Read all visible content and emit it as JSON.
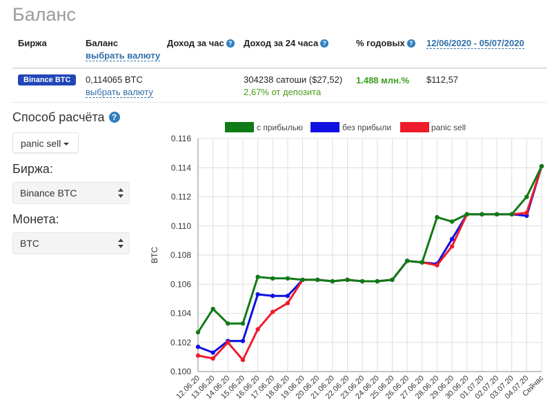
{
  "page_title": "Баланс",
  "table": {
    "headers": {
      "exchange": "Биржа",
      "balance": "Баланс",
      "balance_sub": "выбрать валюту",
      "hourly": "Доход за час",
      "daily": "Доход за 24 часа",
      "annual": "% годовых",
      "date_range": "12/06/2020 - 05/07/2020"
    },
    "row": {
      "exchange_badge": "Binance BTC",
      "balance_value": "0,114065 BTC",
      "balance_link": "выбрать валюту",
      "daily_value": "304238 сатоши ($27,52)",
      "daily_percent": "2,67% от депозита",
      "annual_value": "1.488 млн.%",
      "usd_value": "$112,57"
    }
  },
  "controls": {
    "method_label": "Способ расчёта",
    "method_value": "panic sell",
    "exchange_label": "Биржа:",
    "exchange_value": "Binance BTC",
    "coin_label": "Монета:",
    "coin_value": "BTC"
  },
  "colors": {
    "profit": "#0f7a16",
    "no_profit": "#1010e0",
    "panic": "#ee1c2a",
    "accent": "#2f6fa8"
  },
  "chart_data": {
    "type": "line",
    "ylabel": "BTC",
    "xlabel": "",
    "ylim": [
      0.1,
      0.116
    ],
    "yticks": [
      "0.100",
      "0.102",
      "0.104",
      "0.106",
      "0.108",
      "0.110",
      "0.112",
      "0.114",
      "0.116"
    ],
    "legend_position": "top",
    "grid": true,
    "categories": [
      "12.06.20",
      "13.06.20",
      "14.06.20",
      "15.06.20",
      "16.06.20",
      "17.06.20",
      "18.06.20",
      "19.06.20",
      "20.06.20",
      "21.06.20",
      "22.06.20",
      "23.06.20",
      "24.06.20",
      "25.06.20",
      "26.06.20",
      "27.06.20",
      "28.06.20",
      "29.06.20",
      "30.06.20",
      "01.07.20",
      "02.07.20",
      "03.07.20",
      "04.07.20",
      "Сейчас"
    ],
    "series": [
      {
        "name": "с прибылью",
        "color": "#0f7a16",
        "values": [
          0.1027,
          0.1043,
          0.1033,
          0.1033,
          0.1065,
          0.1064,
          0.1064,
          0.1063,
          0.1063,
          0.1062,
          0.1063,
          0.1062,
          0.1062,
          0.1063,
          0.1076,
          0.1075,
          0.1106,
          0.1103,
          0.1108,
          0.1108,
          0.1108,
          0.1108,
          0.112,
          0.1141
        ]
      },
      {
        "name": "без прибыли",
        "color": "#1010e0",
        "values": [
          0.1017,
          0.1013,
          0.1021,
          0.1021,
          0.1053,
          0.1052,
          0.1052,
          0.1063,
          0.1063,
          0.1062,
          0.1063,
          0.1062,
          0.1062,
          0.1063,
          0.1076,
          0.1075,
          0.1074,
          0.1091,
          0.1108,
          0.1108,
          0.1108,
          0.1108,
          0.1107,
          0.1141
        ]
      },
      {
        "name": "panic sell",
        "color": "#ee1c2a",
        "values": [
          0.1011,
          0.1009,
          0.102,
          0.1008,
          0.1029,
          0.1041,
          0.1047,
          0.1063,
          0.1063,
          0.1062,
          0.1063,
          0.1062,
          0.1062,
          0.1063,
          0.1076,
          0.1075,
          0.1073,
          0.1086,
          0.1108,
          0.1108,
          0.1108,
          0.1108,
          0.1109,
          0.1141
        ]
      }
    ]
  }
}
